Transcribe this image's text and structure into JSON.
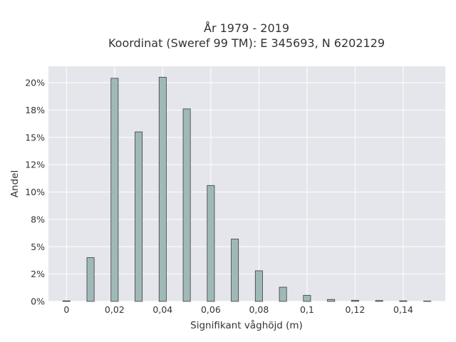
{
  "chart_data": {
    "type": "bar",
    "title_lines": [
      "År 1979 - 2019",
      "Koordinat (Sweref 99 TM): E 345693, N 6202129"
    ],
    "xlabel": "Signifikant våghöjd (m)",
    "ylabel": "Andel",
    "x_ticks": [
      {
        "value": 0,
        "label": "0"
      },
      {
        "value": 0.02,
        "label": "0,02"
      },
      {
        "value": 0.04,
        "label": "0,04"
      },
      {
        "value": 0.06,
        "label": "0,06"
      },
      {
        "value": 0.08,
        "label": "0,08"
      },
      {
        "value": 0.1,
        "label": "0,1"
      },
      {
        "value": 0.12,
        "label": "0,12"
      },
      {
        "value": 0.14,
        "label": "0,14"
      }
    ],
    "y_ticks": [
      {
        "value": 0,
        "label": "0%"
      },
      {
        "value": 2.5,
        "label": "2%"
      },
      {
        "value": 5,
        "label": "5%"
      },
      {
        "value": 7.5,
        "label": "8%"
      },
      {
        "value": 10,
        "label": "10%"
      },
      {
        "value": 12.5,
        "label": "12%"
      },
      {
        "value": 15,
        "label": "15%"
      },
      {
        "value": 17.5,
        "label": "18%"
      },
      {
        "value": 20,
        "label": "20%"
      }
    ],
    "xlim": [
      -0.0075,
      0.1575
    ],
    "ylim": [
      0,
      21.5
    ],
    "x": [
      0,
      0.01,
      0.02,
      0.03,
      0.04,
      0.05,
      0.06,
      0.07,
      0.08,
      0.09,
      0.1,
      0.11,
      0.12,
      0.13,
      0.14,
      0.15
    ],
    "values": [
      0.05,
      4.0,
      20.4,
      15.5,
      20.5,
      17.6,
      10.6,
      5.7,
      2.8,
      1.3,
      0.55,
      0.18,
      0.1,
      0.08,
      0.05,
      0.03
    ],
    "bar_width": 0.003,
    "grid": true,
    "colors": {
      "plot_background": "#e5e5ec",
      "grid": "#ffffff",
      "bar_fill": "#9fb9b9",
      "bar_stroke": "#3a3a3a"
    }
  }
}
